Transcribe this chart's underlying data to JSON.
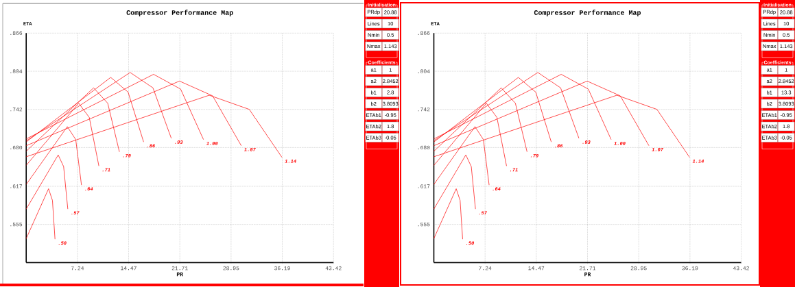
{
  "chart_data": [
    {
      "type": "line",
      "title": "Compressor Performance Map",
      "xlabel": "PR",
      "ylabel": "ETA",
      "xlim": [
        0,
        43.42
      ],
      "ylim": [
        0.493,
        0.866
      ],
      "xticks": [
        7.24,
        14.47,
        21.71,
        28.95,
        36.19,
        43.42
      ],
      "yticks": [
        {
          "value": 0.555,
          "label": ".555"
        },
        {
          "value": 0.617,
          "label": ".617"
        },
        {
          "value": 0.68,
          "label": ".680"
        },
        {
          "value": 0.742,
          "label": ".742"
        },
        {
          "value": 0.804,
          "label": ".804"
        },
        {
          "value": 0.866,
          "label": ".866"
        }
      ],
      "grid": true,
      "series": [
        {
          "name": ".50",
          "color": "#ff0000",
          "x": [
            0,
            3.16,
            3.71,
            4.07
          ],
          "values": [
            0.532,
            0.613,
            0.594,
            0.531
          ]
        },
        {
          "name": ".57",
          "color": "#ff0000",
          "x": [
            0,
            4.52,
            5.29,
            5.88
          ],
          "values": [
            0.58,
            0.668,
            0.649,
            0.58
          ]
        },
        {
          "name": ".64",
          "color": "#ff0000",
          "x": [
            0,
            5.81,
            7.0,
            7.81
          ],
          "values": [
            0.62,
            0.714,
            0.693,
            0.619
          ]
        },
        {
          "name": ".71",
          "color": "#ff0000",
          "x": [
            0,
            7.42,
            8.91,
            10.27
          ],
          "values": [
            0.651,
            0.752,
            0.729,
            0.65
          ]
        },
        {
          "name": ".79",
          "color": "#ff0000",
          "x": [
            0,
            9.52,
            11.52,
            13.17
          ],
          "values": [
            0.674,
            0.777,
            0.752,
            0.673
          ]
        },
        {
          "name": ".86",
          "color": "#ff0000",
          "x": [
            0,
            11.94,
            14.4,
            16.59
          ],
          "values": [
            0.689,
            0.794,
            0.77,
            0.689
          ]
        },
        {
          "name": ".93",
          "color": "#ff0000",
          "x": [
            0,
            14.69,
            17.91,
            20.5
          ],
          "values": [
            0.691,
            0.802,
            0.777,
            0.695
          ]
        },
        {
          "name": "1.00",
          "color": "#ff0000",
          "x": [
            0,
            18.0,
            21.82,
            25.05
          ],
          "values": [
            0.694,
            0.799,
            0.775,
            0.693
          ]
        },
        {
          "name": "1.07",
          "color": "#ff0000",
          "x": [
            0,
            21.66,
            26.34,
            30.39
          ],
          "values": [
            0.683,
            0.788,
            0.764,
            0.683
          ]
        },
        {
          "name": "1.14",
          "color": "#ff0000",
          "x": [
            0,
            25.86,
            31.52,
            36.14
          ],
          "values": [
            0.665,
            0.765,
            0.742,
            0.664
          ]
        }
      ]
    },
    {
      "type": "other",
      "title": "Initialisation",
      "annotations": [
        "PRdp",
        "20.88",
        "Lines",
        "10",
        "Nmin",
        "0.5",
        "Nmax",
        "1.143"
      ]
    },
    {
      "type": "other",
      "title": "Coefficients",
      "annotations": [
        "a1",
        "1",
        "a2",
        "2.8452",
        "b1",
        "2.8",
        "b2",
        "3.8093",
        "ETAb1",
        "-0.95",
        "ETAb2",
        "1.8",
        "ETAb3",
        "-0.05"
      ]
    },
    {
      "type": "line",
      "title": "Compressor Performance Map",
      "xlabel": "PR",
      "ylabel": "ETA",
      "xlim": [
        0,
        43.42
      ],
      "ylim": [
        0.493,
        0.866
      ],
      "xticks": [
        7.24,
        14.47,
        21.71,
        28.95,
        36.19,
        43.42
      ],
      "yticks": [
        {
          "value": 0.555,
          "label": ".555"
        },
        {
          "value": 0.617,
          "label": ".617"
        },
        {
          "value": 0.68,
          "label": ".680"
        },
        {
          "value": 0.742,
          "label": ".742"
        },
        {
          "value": 0.804,
          "label": ".804"
        },
        {
          "value": 0.866,
          "label": ".866"
        }
      ],
      "grid": true,
      "series": [
        {
          "name": ".50",
          "color": "#ff0000",
          "x": [
            0,
            3.16,
            3.71,
            4.07
          ],
          "values": [
            0.532,
            0.613,
            0.594,
            0.531
          ]
        },
        {
          "name": ".57",
          "color": "#ff0000",
          "x": [
            0,
            4.52,
            5.29,
            5.88
          ],
          "values": [
            0.58,
            0.668,
            0.649,
            0.58
          ]
        },
        {
          "name": ".64",
          "color": "#ff0000",
          "x": [
            0,
            5.81,
            7.0,
            7.81
          ],
          "values": [
            0.62,
            0.714,
            0.693,
            0.619
          ]
        },
        {
          "name": ".71",
          "color": "#ff0000",
          "x": [
            0,
            7.42,
            8.91,
            10.27
          ],
          "values": [
            0.651,
            0.752,
            0.729,
            0.65
          ]
        },
        {
          "name": ".79",
          "color": "#ff0000",
          "x": [
            0,
            9.52,
            11.52,
            13.17
          ],
          "values": [
            0.674,
            0.777,
            0.752,
            0.673
          ]
        },
        {
          "name": ".86",
          "color": "#ff0000",
          "x": [
            0,
            11.94,
            14.4,
            16.59
          ],
          "values": [
            0.689,
            0.794,
            0.77,
            0.689
          ]
        },
        {
          "name": ".93",
          "color": "#ff0000",
          "x": [
            0,
            14.69,
            17.91,
            20.5
          ],
          "values": [
            0.691,
            0.802,
            0.777,
            0.695
          ]
        },
        {
          "name": "1.00",
          "color": "#ff0000",
          "x": [
            0,
            18.0,
            21.82,
            25.05
          ],
          "values": [
            0.694,
            0.799,
            0.775,
            0.693
          ]
        },
        {
          "name": "1.07",
          "color": "#ff0000",
          "x": [
            0,
            21.66,
            26.34,
            30.39
          ],
          "values": [
            0.683,
            0.788,
            0.764,
            0.683
          ]
        },
        {
          "name": "1.14",
          "color": "#ff0000",
          "x": [
            0,
            25.86,
            31.52,
            36.14
          ],
          "values": [
            0.665,
            0.765,
            0.742,
            0.664
          ]
        }
      ]
    },
    {
      "type": "other",
      "title": "Initialisation",
      "annotations": [
        "PRdp",
        "20.88",
        "Lines",
        "10",
        "Nmin",
        "0.5",
        "Nmax",
        "1.143"
      ]
    },
    {
      "type": "other",
      "title": "Coefficients",
      "annotations": [
        "a1",
        "1",
        "a2",
        "2.8452",
        "b1",
        "13.3",
        "b2",
        "3.8093",
        "ETAb1",
        "-0.95",
        "ETAb2",
        "1.8",
        "ETAb3",
        "-0.05"
      ]
    }
  ]
}
